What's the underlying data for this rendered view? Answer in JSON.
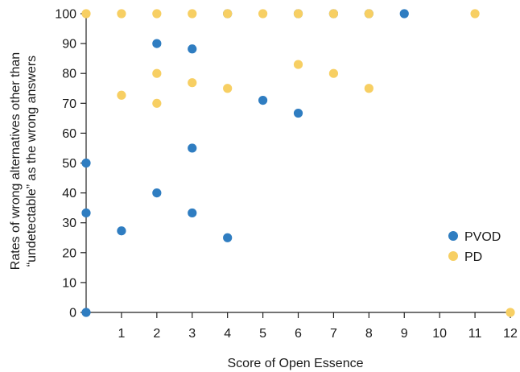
{
  "chart_data": {
    "type": "scatter",
    "title": "",
    "xlabel": "Score of Open Essence",
    "ylabel_lines": [
      "Rates of wrong alternatives other than",
      "“undetectable” as the wrong answers"
    ],
    "xlim": [
      0,
      12
    ],
    "ylim": [
      0,
      100
    ],
    "x_ticks": [
      1,
      2,
      3,
      4,
      5,
      6,
      7,
      8,
      9,
      10,
      11,
      12
    ],
    "y_ticks": [
      0,
      10,
      20,
      30,
      40,
      50,
      60,
      70,
      80,
      90,
      100
    ],
    "grid": false,
    "legend_position": "right",
    "series": [
      {
        "name": "PVOD",
        "color": "#2f7dc1",
        "points": [
          [
            0,
            0
          ],
          [
            0,
            33.3
          ],
          [
            0,
            50
          ],
          [
            1,
            27.3
          ],
          [
            2,
            40
          ],
          [
            2,
            90
          ],
          [
            3,
            33.3
          ],
          [
            3,
            55
          ],
          [
            3,
            88.2
          ],
          [
            4,
            25
          ],
          [
            4,
            100
          ],
          [
            5,
            71
          ],
          [
            6,
            66.7
          ],
          [
            6,
            100
          ],
          [
            7,
            100
          ],
          [
            8,
            100
          ],
          [
            9,
            100
          ]
        ]
      },
      {
        "name": "PD",
        "color": "#f7cf63",
        "points": [
          [
            0,
            100
          ],
          [
            1,
            72.7
          ],
          [
            1,
            100
          ],
          [
            2,
            70
          ],
          [
            2,
            80
          ],
          [
            2,
            100
          ],
          [
            3,
            76.9
          ],
          [
            3,
            100
          ],
          [
            4,
            75
          ],
          [
            4,
            100
          ],
          [
            5,
            100
          ],
          [
            6,
            83
          ],
          [
            6,
            100
          ],
          [
            7,
            80
          ],
          [
            7,
            100
          ],
          [
            8,
            75
          ],
          [
            8,
            100
          ],
          [
            11,
            100
          ],
          [
            12,
            0
          ]
        ]
      }
    ]
  }
}
